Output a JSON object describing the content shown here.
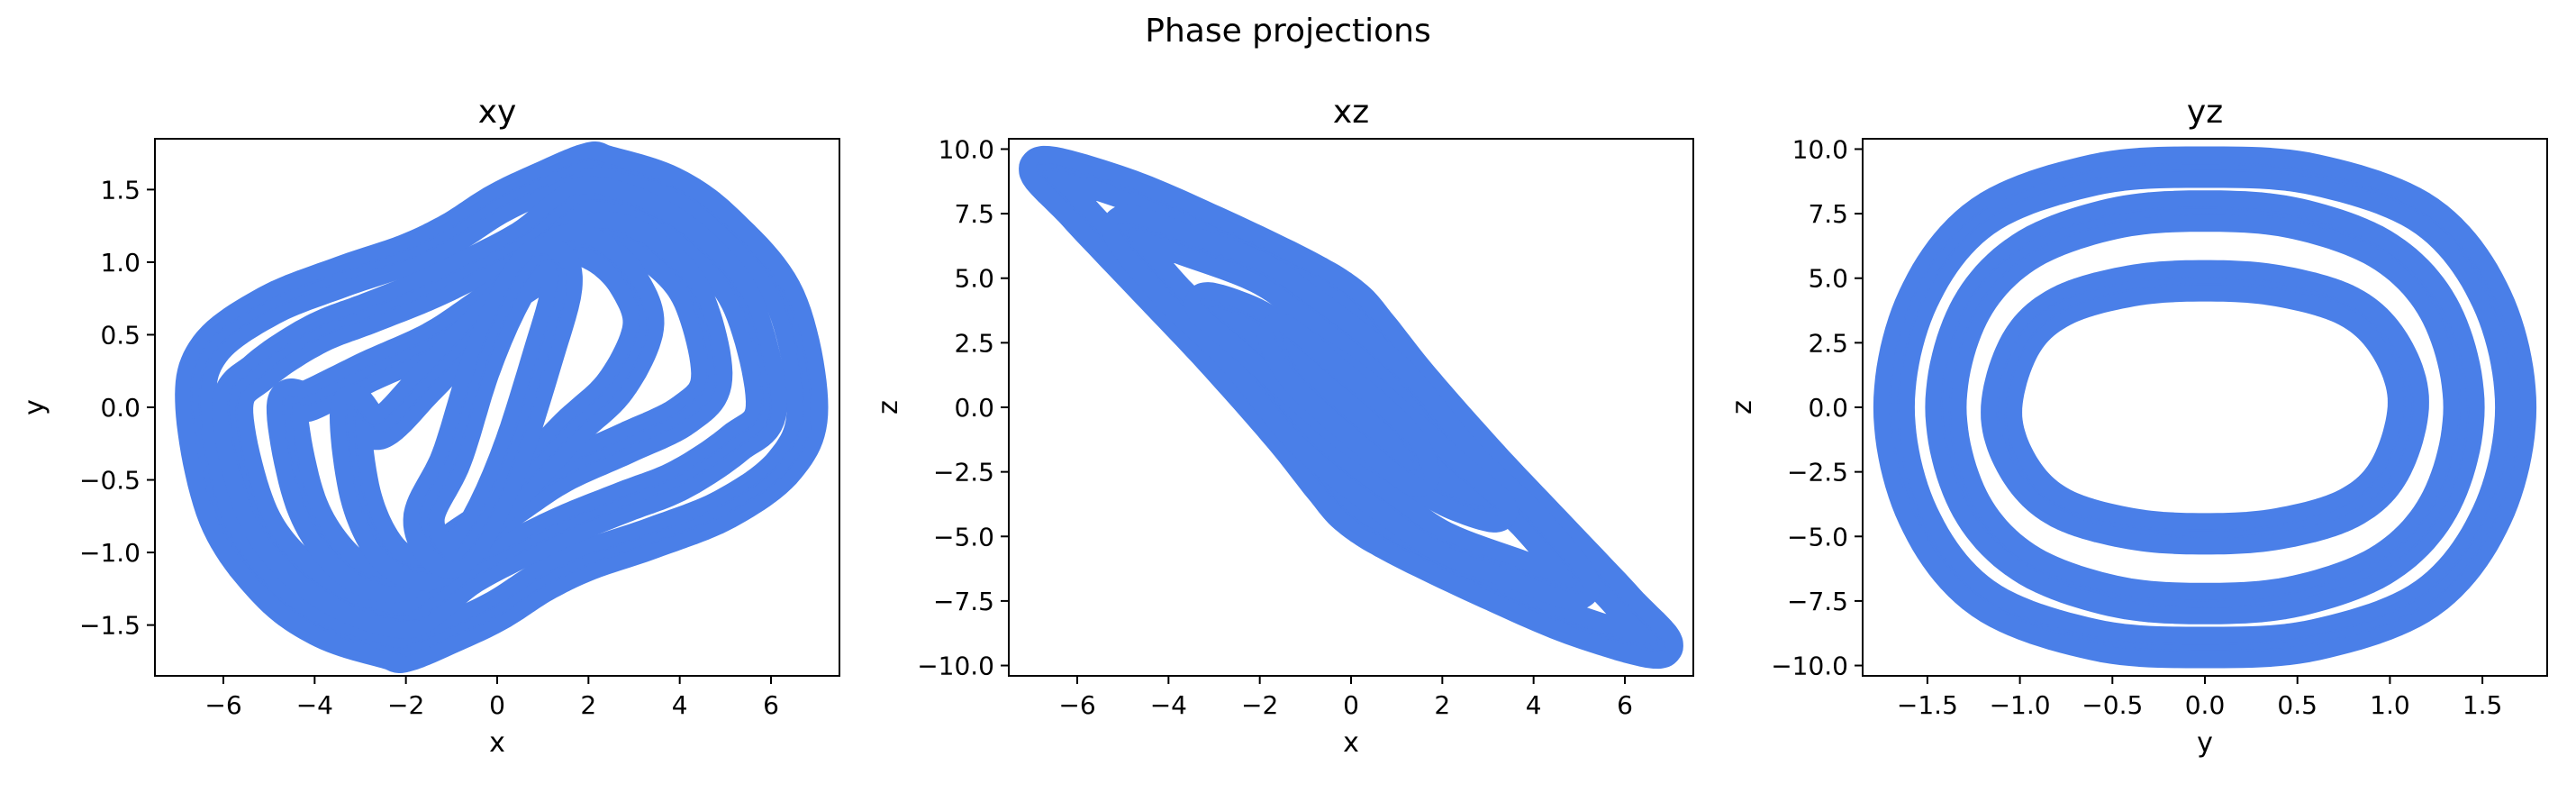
{
  "figure": {
    "suptitle": "Phase projections"
  },
  "colors": {
    "line": "#4a7fe8"
  },
  "chart_data": [
    {
      "type": "line",
      "title": "xy",
      "xlabel": "x",
      "ylabel": "y",
      "xlim": [
        -7.5,
        7.5
      ],
      "ylim": [
        -1.85,
        1.85
      ],
      "xticks": [
        -6,
        -4,
        -2,
        0,
        2,
        4,
        6
      ],
      "xtick_labels": [
        "−6",
        "−4",
        "−2",
        "0",
        "2",
        "4",
        "6"
      ],
      "yticks": [
        -1.5,
        -1.0,
        -0.5,
        0.0,
        0.5,
        1.0,
        1.5
      ],
      "ytick_labels": [
        "−1.5",
        "−1.0",
        "−0.5",
        "0.0",
        "0.5",
        "1.0",
        "1.5"
      ],
      "series": [
        {
          "x": [
            -6.6,
            -6.1,
            -5.0,
            -3.8,
            -2.4,
            -2.0,
            -1.0,
            0.0,
            1.0,
            2.0,
            3.4,
            5.0,
            6.3,
            6.8,
            6.3,
            5.0,
            3.8,
            2.4,
            2.0,
            1.0,
            0.0,
            -1.0,
            -2.0,
            -3.4,
            -5.0,
            -6.3,
            -6.6
          ],
          "y": [
            0.0,
            -0.75,
            -1.25,
            -1.52,
            -1.66,
            -1.68,
            -1.55,
            -1.4,
            -1.2,
            -1.05,
            -0.9,
            -0.7,
            -0.4,
            0.0,
            0.75,
            1.25,
            1.52,
            1.66,
            1.68,
            1.55,
            1.4,
            1.2,
            1.05,
            0.9,
            0.7,
            0.4,
            0.0
          ]
        },
        {
          "x": [
            -5.8,
            -5.3,
            -4.4,
            -3.2,
            -2.0,
            -1.4,
            -0.6,
            0.6,
            1.6,
            2.8,
            4.0,
            5.2,
            5.9,
            5.4,
            4.4,
            3.2,
            2.0,
            1.4,
            0.6,
            -0.6,
            -1.6,
            -2.8,
            -4.0,
            -5.2,
            -5.8
          ],
          "y": [
            0.0,
            -0.7,
            -1.1,
            -1.35,
            -1.45,
            -1.35,
            -1.15,
            -0.95,
            -0.8,
            -0.65,
            -0.5,
            -0.25,
            0.0,
            0.7,
            1.1,
            1.35,
            1.45,
            1.35,
            1.15,
            0.95,
            0.8,
            0.65,
            0.5,
            0.25,
            0.0
          ]
        },
        {
          "x": [
            -4.6,
            -4.2,
            -3.4,
            -2.5,
            -1.7,
            -1.0,
            0.2,
            1.4,
            2.8,
            4.1,
            4.7,
            4.3,
            3.5,
            2.6,
            1.7,
            1.0,
            -0.2,
            -1.4,
            -2.8,
            -4.1,
            -4.6
          ],
          "y": [
            0.0,
            -0.65,
            -1.05,
            -1.2,
            -1.15,
            -0.95,
            -0.7,
            -0.45,
            -0.25,
            -0.05,
            0.2,
            0.75,
            1.05,
            1.2,
            1.15,
            0.95,
            0.7,
            0.45,
            0.25,
            0.05,
            0.0
          ]
        },
        {
          "x": [
            -3.2,
            -3.0,
            -2.4,
            -1.6,
            -0.9,
            -0.2,
            0.7,
            1.6,
            2.6,
            3.2,
            2.9,
            2.3,
            1.6,
            0.9,
            0.2,
            -0.7,
            -1.6,
            -2.6,
            -3.2
          ],
          "y": [
            0.0,
            -0.6,
            -1.0,
            -1.12,
            -1.0,
            -0.75,
            -0.45,
            -0.15,
            0.15,
            0.55,
            0.85,
            1.05,
            1.12,
            1.0,
            0.75,
            0.45,
            0.15,
            -0.15,
            0.0
          ]
        },
        {
          "x": [
            -1.6,
            -1.3,
            -0.8,
            -0.2,
            0.4,
            1.0,
            1.4,
            1.3,
            0.8,
            0.2,
            -0.4,
            -1.0,
            -1.6
          ],
          "y": [
            -0.75,
            -1.0,
            -1.0,
            -0.7,
            -0.25,
            0.35,
            0.8,
            1.0,
            1.0,
            0.7,
            0.25,
            -0.35,
            -0.75
          ]
        }
      ]
    },
    {
      "type": "line",
      "title": "xz",
      "xlabel": "x",
      "ylabel": "z",
      "xlim": [
        -7.5,
        7.5
      ],
      "ylim": [
        -10.4,
        10.4
      ],
      "xticks": [
        -6,
        -4,
        -2,
        0,
        2,
        4,
        6
      ],
      "xtick_labels": [
        "−6",
        "−4",
        "−2",
        "0",
        "2",
        "4",
        "6"
      ],
      "yticks": [
        -10.0,
        -7.5,
        -5.0,
        -2.5,
        0.0,
        2.5,
        5.0,
        7.5,
        10.0
      ],
      "ytick_labels": [
        "−10.0",
        "−7.5",
        "−5.0",
        "−2.5",
        "0.0",
        "2.5",
        "5.0",
        "7.5",
        "10.0"
      ],
      "series": [
        {
          "x": [
            -6.8,
            -5.0,
            -3.0,
            -1.0,
            0.0,
            0.6,
            1.5,
            3.0,
            4.5,
            6.0,
            6.8,
            5.0,
            3.0,
            1.0,
            0.0,
            -0.6,
            -1.5,
            -3.0,
            -4.5,
            -6.0,
            -6.8
          ],
          "y": [
            9.3,
            8.5,
            7.0,
            5.3,
            4.2,
            3.0,
            1.0,
            -2.0,
            -4.8,
            -7.6,
            -9.3,
            -8.5,
            -7.0,
            -5.3,
            -4.2,
            -3.0,
            -1.0,
            2.0,
            4.8,
            7.6,
            9.3
          ]
        },
        {
          "x": [
            -5.0,
            -3.5,
            -2.0,
            -1.0,
            0.2,
            1.2,
            2.5,
            4.0,
            5.0,
            3.5,
            2.0,
            1.0,
            -0.2,
            -1.2,
            -2.5,
            -4.0,
            -5.0
          ],
          "y": [
            7.0,
            6.2,
            5.2,
            4.0,
            2.4,
            0.8,
            -2.0,
            -4.6,
            -7.0,
            -6.2,
            -5.2,
            -4.0,
            -2.4,
            -0.8,
            2.0,
            4.6,
            7.0
          ]
        },
        {
          "x": [
            -3.2,
            -2.2,
            -1.2,
            0.0,
            1.0,
            2.2,
            3.2,
            2.2,
            1.2,
            0.0,
            -1.0,
            -2.2,
            -3.2
          ],
          "y": [
            4.0,
            3.5,
            2.4,
            1.0,
            -0.5,
            -2.4,
            -4.0,
            -3.5,
            -2.4,
            -1.0,
            0.5,
            2.4,
            4.0
          ]
        },
        {
          "x": [
            -1.6,
            -1.2,
            -0.4,
            0.4,
            1.2,
            1.5,
            1.2,
            0.4,
            -0.4,
            -1.2,
            -1.6
          ],
          "y": [
            2.8,
            2.4,
            1.2,
            0.0,
            -1.4,
            -2.6,
            -2.4,
            -1.2,
            0.0,
            1.4,
            2.8
          ]
        }
      ]
    },
    {
      "type": "line",
      "title": "yz",
      "xlabel": "y",
      "ylabel": "z",
      "xlim": [
        -1.85,
        1.85
      ],
      "ylim": [
        -10.4,
        10.4
      ],
      "xticks": [
        -1.5,
        -1.0,
        -0.5,
        0.0,
        0.5,
        1.0,
        1.5
      ],
      "xtick_labels": [
        "−1.5",
        "−1.0",
        "−0.5",
        "0.0",
        "0.5",
        "1.0",
        "1.5"
      ],
      "yticks": [
        -10.0,
        -7.5,
        -5.0,
        -2.5,
        0.0,
        2.5,
        5.0,
        7.5,
        10.0
      ],
      "ytick_labels": [
        "−10.0",
        "−7.5",
        "−5.0",
        "−2.5",
        "0.0",
        "2.5",
        "5.0",
        "7.5",
        "10.0"
      ],
      "series": [
        {
          "x": [
            -1.68,
            -1.55,
            -1.2,
            -0.6,
            0.0,
            0.6,
            1.2,
            1.55,
            1.68,
            1.55,
            1.2,
            0.6,
            0.0,
            -0.6,
            -1.2,
            -1.55,
            -1.68
          ],
          "y": [
            0.0,
            4.2,
            7.4,
            9.0,
            9.3,
            9.0,
            7.4,
            4.2,
            0.0,
            -4.2,
            -7.4,
            -9.0,
            -9.3,
            -9.0,
            -7.4,
            -4.2,
            0.0
          ]
        },
        {
          "x": [
            -1.4,
            -1.28,
            -0.98,
            -0.5,
            0.0,
            0.5,
            0.98,
            1.28,
            1.4,
            1.28,
            0.98,
            0.5,
            0.0,
            -0.5,
            -0.98,
            -1.28,
            -1.4
          ],
          "y": [
            0.0,
            3.6,
            6.0,
            7.3,
            7.6,
            7.3,
            6.0,
            3.6,
            0.0,
            -3.6,
            -6.0,
            -7.3,
            -7.6,
            -7.3,
            -6.0,
            -3.6,
            0.0
          ]
        },
        {
          "x": [
            -1.1,
            -1.0,
            -0.78,
            -0.4,
            0.0,
            0.4,
            0.78,
            1.0,
            1.1,
            1.0,
            0.78,
            0.4,
            0.0,
            -0.4,
            -0.78,
            -1.0,
            -1.1
          ],
          "y": [
            -0.2,
            2.4,
            3.9,
            4.7,
            4.9,
            4.7,
            3.9,
            2.4,
            0.2,
            -2.4,
            -3.9,
            -4.7,
            -4.9,
            -4.7,
            -3.9,
            -2.4,
            -0.2
          ]
        }
      ]
    }
  ]
}
